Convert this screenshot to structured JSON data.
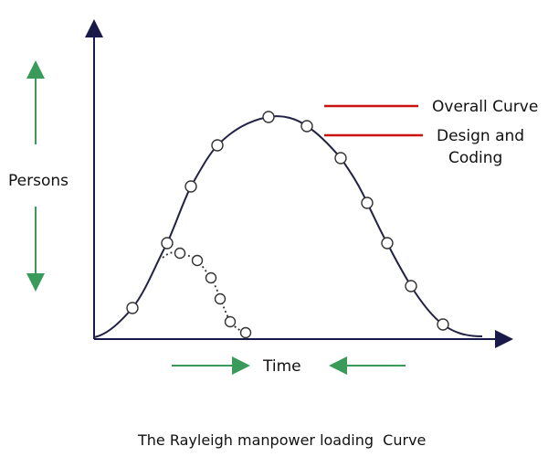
{
  "diagram": {
    "y_label": "Persons",
    "x_label": "Time",
    "caption": "The Rayleigh manpower loading  Curve",
    "legend": [
      {
        "label": "Overall Curve"
      },
      {
        "label_line1": "Design and",
        "label_line2": "Coding"
      }
    ],
    "colors": {
      "axis": "#1a1a4a",
      "curve": "#222244",
      "legend_line": "#cc1111",
      "arrow": "#3a9a5a",
      "marker_fill": "#ffffff"
    }
  }
}
